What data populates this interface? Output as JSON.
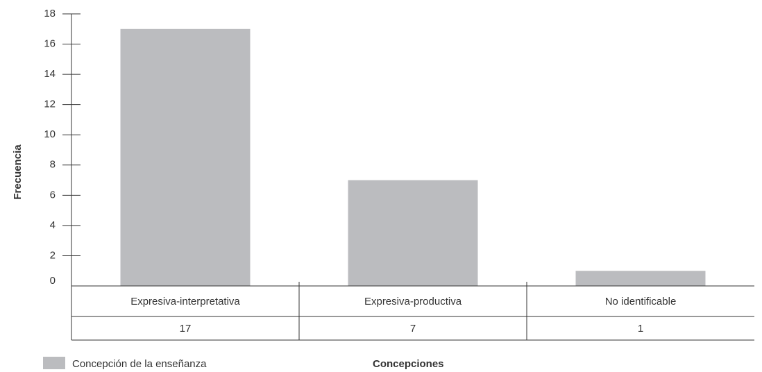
{
  "chart_data": {
    "type": "bar",
    "categories": [
      "Expresiva-interpretativa",
      "Expresiva-productiva",
      "No identificable"
    ],
    "series": [
      {
        "name": "Concepción de la enseñanza",
        "values": [
          17,
          7,
          1
        ],
        "color": "#bbbcbf"
      }
    ],
    "table_values": [
      "17",
      "7",
      "1"
    ],
    "ylabel": "Frecuencia",
    "xlabel": "Concepciones",
    "ylim": [
      0,
      18
    ],
    "yticks": [
      0,
      2,
      4,
      6,
      8,
      10,
      12,
      14,
      16,
      18
    ],
    "legend": "bottom-left",
    "grid": false
  }
}
